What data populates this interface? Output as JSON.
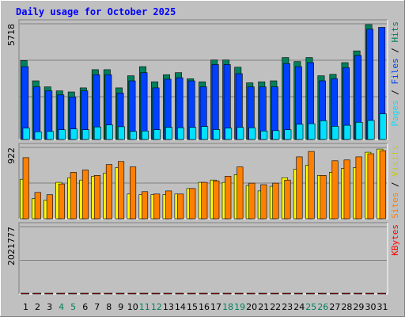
{
  "title": "Daily usage for October 2025",
  "colors": {
    "background": "#c0c0c0",
    "title": "#0000ff",
    "hits": "#00805c",
    "files": "#0040ff",
    "pages": "#00e0ff",
    "visits": "#ffff00",
    "sites": "#ff8000",
    "kbytes": "#ff0000",
    "weekday_label": "#000000",
    "weekend_label": "#00805c"
  },
  "chart_data": [
    {
      "type": "bar",
      "panel": "top",
      "max_label": "5718",
      "ylim": [
        0,
        5718
      ],
      "axis_label_parts": [
        {
          "text": "Pages",
          "color": "#00e0ff"
        },
        {
          "text": " / ",
          "color": "#000000"
        },
        {
          "text": "Files",
          "color": "#0040ff"
        },
        {
          "text": " / ",
          "color": "#000000"
        },
        {
          "text": "Hits",
          "color": "#00805c"
        }
      ],
      "categories": [
        "1",
        "2",
        "3",
        "4",
        "5",
        "6",
        "7",
        "8",
        "9",
        "10",
        "11",
        "12",
        "13",
        "14",
        "15",
        "16",
        "17",
        "18",
        "19",
        "20",
        "21",
        "22",
        "23",
        "24",
        "25",
        "26",
        "27",
        "28",
        "29",
        "30",
        "31"
      ],
      "weekend": [
        false,
        false,
        false,
        true,
        true,
        false,
        false,
        false,
        false,
        false,
        true,
        true,
        false,
        false,
        false,
        false,
        false,
        true,
        true,
        false,
        false,
        false,
        false,
        false,
        true,
        true,
        false,
        false,
        false,
        false,
        false
      ],
      "series": [
        {
          "name": "Hits",
          "values": [
            3900,
            2900,
            2600,
            2400,
            2350,
            2550,
            3450,
            3450,
            2550,
            3150,
            3600,
            2850,
            3200,
            3300,
            3000,
            2850,
            3930,
            3930,
            3570,
            2800,
            2850,
            2900,
            4050,
            3850,
            4050,
            3150,
            3220,
            3800,
            4380,
            5680,
            0
          ]
        },
        {
          "name": "Files",
          "values": [
            3600,
            2600,
            2400,
            2200,
            2100,
            2400,
            3200,
            3200,
            2300,
            2900,
            3300,
            2550,
            2980,
            3050,
            2900,
            2600,
            3700,
            3700,
            3250,
            2600,
            2600,
            2600,
            3750,
            3600,
            3800,
            2900,
            3000,
            3550,
            4150,
            5450,
            5540
          ]
        },
        {
          "name": "Pages",
          "values": [
            560,
            380,
            400,
            480,
            520,
            480,
            620,
            720,
            630,
            400,
            420,
            480,
            600,
            580,
            600,
            640,
            490,
            560,
            600,
            580,
            420,
            440,
            480,
            750,
            780,
            930,
            650,
            700,
            850,
            940,
            1270
          ]
        }
      ]
    },
    {
      "type": "bar",
      "panel": "middle",
      "max_label": "922",
      "ylim": [
        0,
        922
      ],
      "axis_label_parts": [
        {
          "text": "Sites",
          "color": "#ff8000"
        },
        {
          "text": " / ",
          "color": "#000000"
        },
        {
          "text": "Visits",
          "color": "#cccc00"
        }
      ],
      "categories": [
        "1",
        "2",
        "3",
        "4",
        "5",
        "6",
        "7",
        "8",
        "9",
        "10",
        "11",
        "12",
        "13",
        "14",
        "15",
        "16",
        "17",
        "18",
        "19",
        "20",
        "21",
        "22",
        "23",
        "24",
        "25",
        "26",
        "27",
        "28",
        "29",
        "30",
        "31"
      ],
      "series": [
        {
          "name": "Visits",
          "values": [
            510,
            260,
            240,
            470,
            530,
            500,
            550,
            590,
            660,
            320,
            310,
            310,
            310,
            320,
            390,
            470,
            500,
            470,
            570,
            430,
            360,
            420,
            530,
            640,
            690,
            560,
            600,
            650,
            660,
            860,
            900
          ]
        },
        {
          "name": "Sites",
          "values": [
            790,
            340,
            310,
            450,
            600,
            630,
            560,
            700,
            740,
            670,
            350,
            320,
            360,
            320,
            390,
            470,
            490,
            550,
            670,
            460,
            440,
            460,
            500,
            800,
            870,
            560,
            750,
            760,
            800,
            840,
            880
          ]
        }
      ]
    },
    {
      "type": "bar",
      "panel": "bottom",
      "max_label": "2021777",
      "ylim": [
        0,
        2021777
      ],
      "axis_label_parts": [
        {
          "text": "KBytes",
          "color": "#ff0000"
        }
      ],
      "categories": [
        "1",
        "2",
        "3",
        "4",
        "5",
        "6",
        "7",
        "8",
        "9",
        "10",
        "11",
        "12",
        "13",
        "14",
        "15",
        "16",
        "17",
        "18",
        "19",
        "20",
        "21",
        "22",
        "23",
        "24",
        "25",
        "26",
        "27",
        "28",
        "29",
        "30",
        "31"
      ],
      "series": [
        {
          "name": "KBytes",
          "values": [
            870,
            690,
            540,
            490,
            560,
            500,
            470,
            850,
            750,
            570,
            740,
            760,
            640,
            650,
            550,
            470,
            440,
            870,
            650,
            860,
            440,
            440,
            500,
            1080,
            700,
            870,
            560,
            460,
            870,
            1050,
            1750
          ]
        }
      ]
    }
  ]
}
